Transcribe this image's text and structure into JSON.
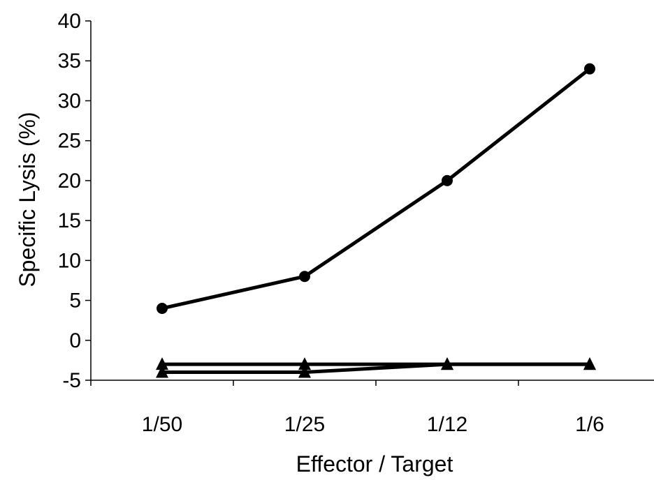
{
  "chart_data": {
    "type": "line",
    "title": "",
    "xlabel": "Effector / Target",
    "ylabel": "Specific Lysis (%)",
    "categories": [
      "1/50",
      "1/25",
      "1/12",
      "1/6"
    ],
    "ylim": [
      -5,
      40
    ],
    "yticks": [
      -5,
      0,
      5,
      10,
      15,
      20,
      25,
      30,
      35,
      40
    ],
    "grid": false,
    "legend": "none",
    "series": [
      {
        "marker": "circle",
        "color": "#000000",
        "values": [
          4,
          8,
          20,
          34
        ]
      },
      {
        "marker": "triangle",
        "color": "#000000",
        "values": [
          -3,
          -3,
          -3,
          -3
        ]
      },
      {
        "marker": "triangle",
        "color": "#000000",
        "values": [
          -4,
          -4,
          -3,
          -3
        ]
      }
    ]
  }
}
